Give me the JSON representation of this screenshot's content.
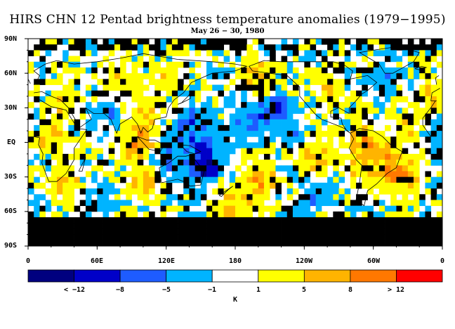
{
  "title": "HIRS CHN 12 Pentad brightness temperature anomalies (1979−1995)",
  "subtitle": "May 26 − 30, 1980",
  "lat_labels": [
    "90N",
    "60N",
    "30N",
    "EQ",
    "30S",
    "60S",
    "90S"
  ],
  "lon_labels": [
    "0",
    "60E",
    "120E",
    "180",
    "120W",
    "60W",
    "0"
  ],
  "colorbar": {
    "colors": [
      "#00007f",
      "#0000c8",
      "#1e5cff",
      "#00b4ff",
      "#ffffff",
      "#ffff00",
      "#ffb400",
      "#ff7800",
      "#ff0000"
    ],
    "labels": [
      "< −12",
      "−8",
      "−5",
      "−1",
      "1",
      "5",
      "8",
      "> 12"
    ],
    "unit": "K"
  },
  "missing_color": "#000000"
}
